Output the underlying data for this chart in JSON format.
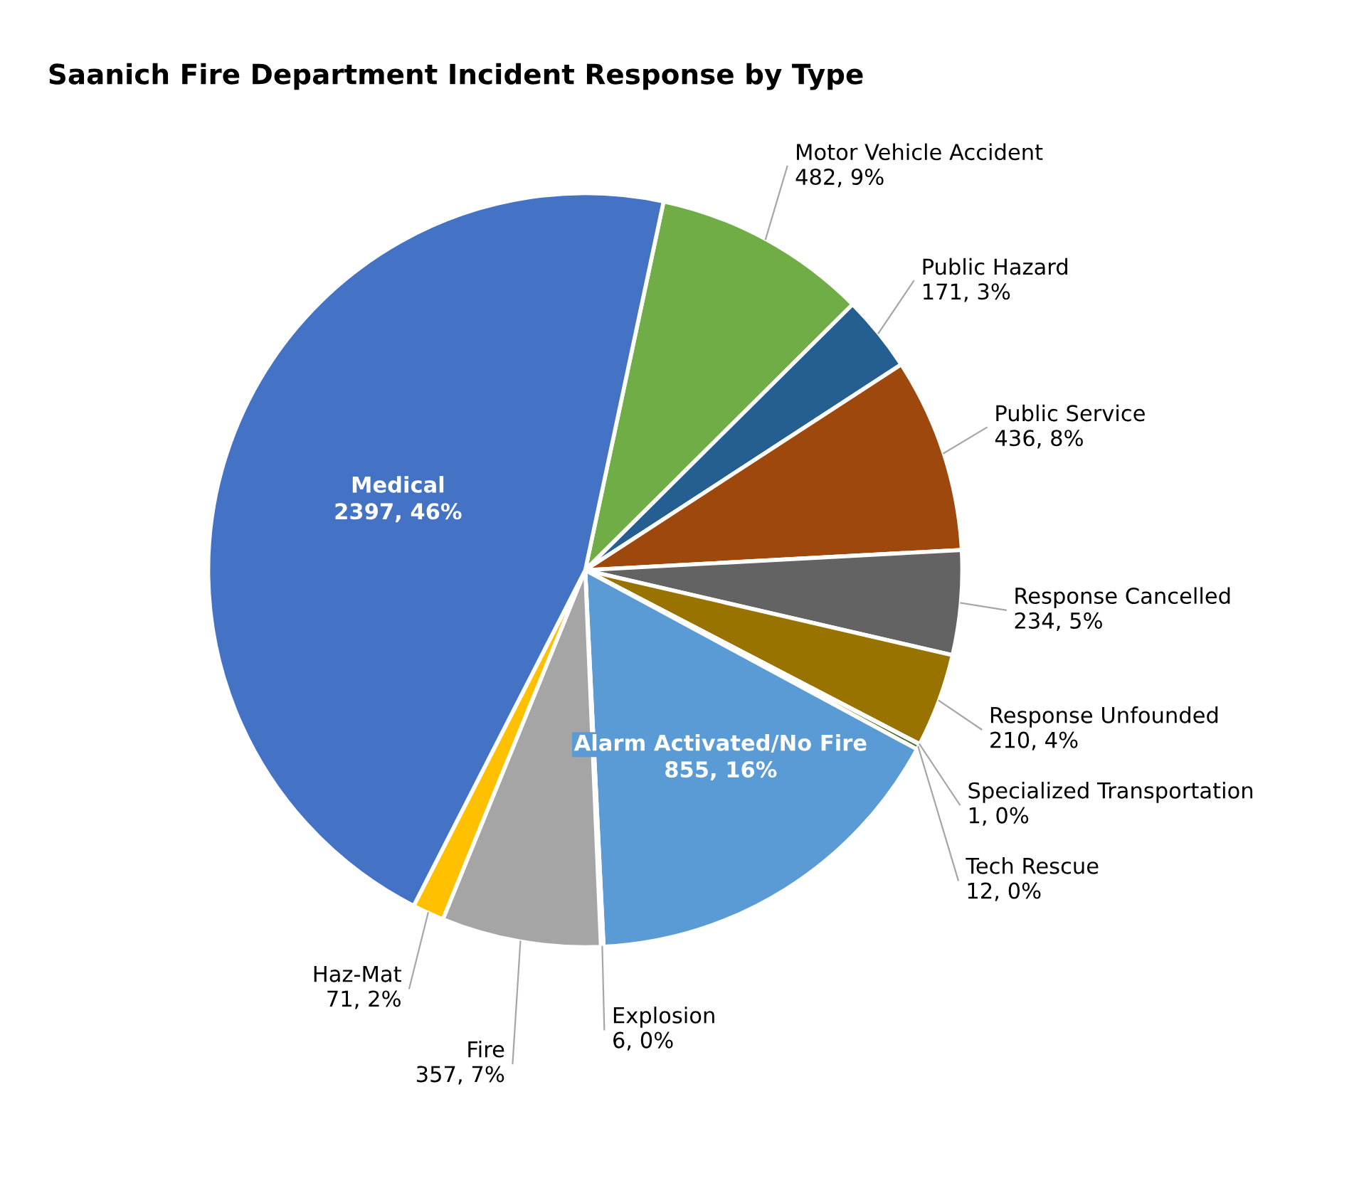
{
  "chart_data": {
    "type": "pie",
    "title": "Saanich Fire Department Incident Response by Type",
    "categories": [
      "Motor Vehicle Accident",
      "Public Hazard",
      "Public Service",
      "Response Cancelled",
      "Response Unfounded",
      "Specialized Transportation",
      "Tech Rescue",
      "Alarm Activated/No Fire",
      "Explosion",
      "Fire",
      "Haz-Mat",
      "Medical"
    ],
    "values": [
      482,
      171,
      436,
      234,
      210,
      1,
      12,
      855,
      6,
      357,
      71,
      2397
    ],
    "colors": [
      "#70ad47",
      "#255e91",
      "#9e480e",
      "#636363",
      "#997300",
      "#264478",
      "#43682b",
      "#5b9bd5",
      "#f2f2f2",
      "#a5a5a5",
      "#ffc000",
      "#4472c4"
    ],
    "value_labels": [
      "482, 9%",
      "171, 3%",
      "436, 8%",
      "234, 5%",
      "210, 4%",
      "1, 0%",
      "12, 0%",
      "855, 16%",
      "6, 0%",
      "357, 7%",
      "71, 2%",
      "2397, 46%"
    ]
  }
}
